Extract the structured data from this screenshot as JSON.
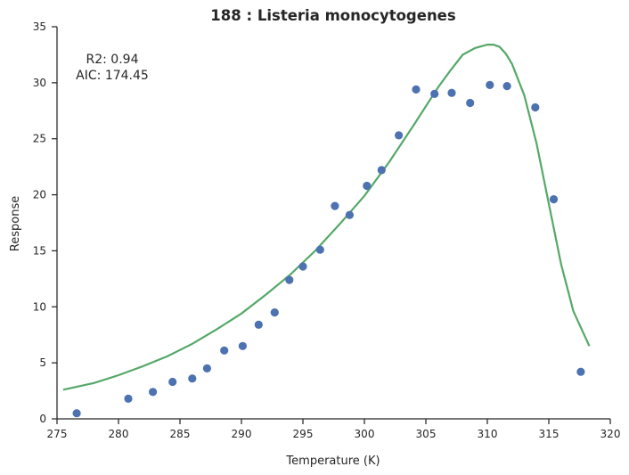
{
  "chart_data": {
    "type": "scatter",
    "title": "188 : Listeria monocytogenes",
    "xlabel": "Temperature (K)",
    "ylabel": "Response",
    "xlim": [
      275,
      320
    ],
    "ylim": [
      0,
      35
    ],
    "xticks": [
      275,
      280,
      285,
      290,
      295,
      300,
      305,
      310,
      315,
      320
    ],
    "yticks": [
      0,
      5,
      10,
      15,
      20,
      25,
      30,
      35
    ],
    "grid": false,
    "annotations": [
      "R2: 0.94",
      "AIC: 174.45"
    ],
    "colors": {
      "points": "#4c72b0",
      "fit": "#55a868",
      "axis": "#262626"
    },
    "series": [
      {
        "kind": "scatter",
        "x": [
          276.6,
          280.8,
          282.8,
          284.4,
          286.0,
          287.2,
          288.6,
          290.1,
          291.4,
          292.7,
          293.9,
          295.0,
          296.4,
          297.6,
          298.8,
          300.2,
          301.4,
          302.8,
          304.2,
          305.7,
          307.1,
          308.6,
          310.2,
          311.6,
          313.9,
          315.4,
          317.6
        ],
        "y": [
          0.5,
          1.8,
          2.4,
          3.3,
          3.6,
          4.5,
          6.1,
          6.5,
          8.4,
          9.5,
          12.4,
          13.6,
          15.1,
          19.0,
          18.2,
          20.8,
          22.2,
          25.3,
          29.4,
          29.0,
          29.1,
          28.2,
          29.8,
          29.7,
          27.8,
          19.6,
          4.2
        ]
      },
      {
        "kind": "line",
        "x": [
          275.5,
          278,
          280,
          282,
          284,
          286,
          288,
          290,
          292,
          294,
          296,
          298,
          300,
          302,
          304,
          306,
          307,
          308,
          309,
          310,
          310.5,
          311,
          311.5,
          312,
          313,
          314,
          315,
          316,
          317,
          318.3
        ],
        "y": [
          2.6,
          3.2,
          3.9,
          4.7,
          5.6,
          6.7,
          8.0,
          9.4,
          11.1,
          12.9,
          15.0,
          17.4,
          19.9,
          22.9,
          26.2,
          29.6,
          31.1,
          32.5,
          33.1,
          33.4,
          33.4,
          33.2,
          32.6,
          31.7,
          28.9,
          24.6,
          19.2,
          13.8,
          9.6,
          6.5
        ]
      }
    ]
  }
}
